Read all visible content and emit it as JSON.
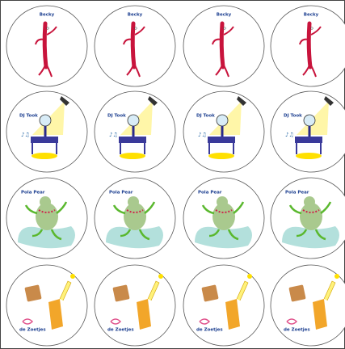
{
  "rows": [
    [
      "Becky",
      "Becky",
      "Becky",
      "Becky"
    ],
    [
      "DJ Took",
      "DJ Took",
      "DJ Took",
      "DJ Took"
    ],
    [
      "Pola Pear",
      "Pola Pear",
      "Pola Pear",
      "Pola Pear"
    ],
    [
      "de Zoetjes",
      "de Zoetjes",
      "de Zoetjes",
      "de Zoetjes"
    ]
  ]
}
